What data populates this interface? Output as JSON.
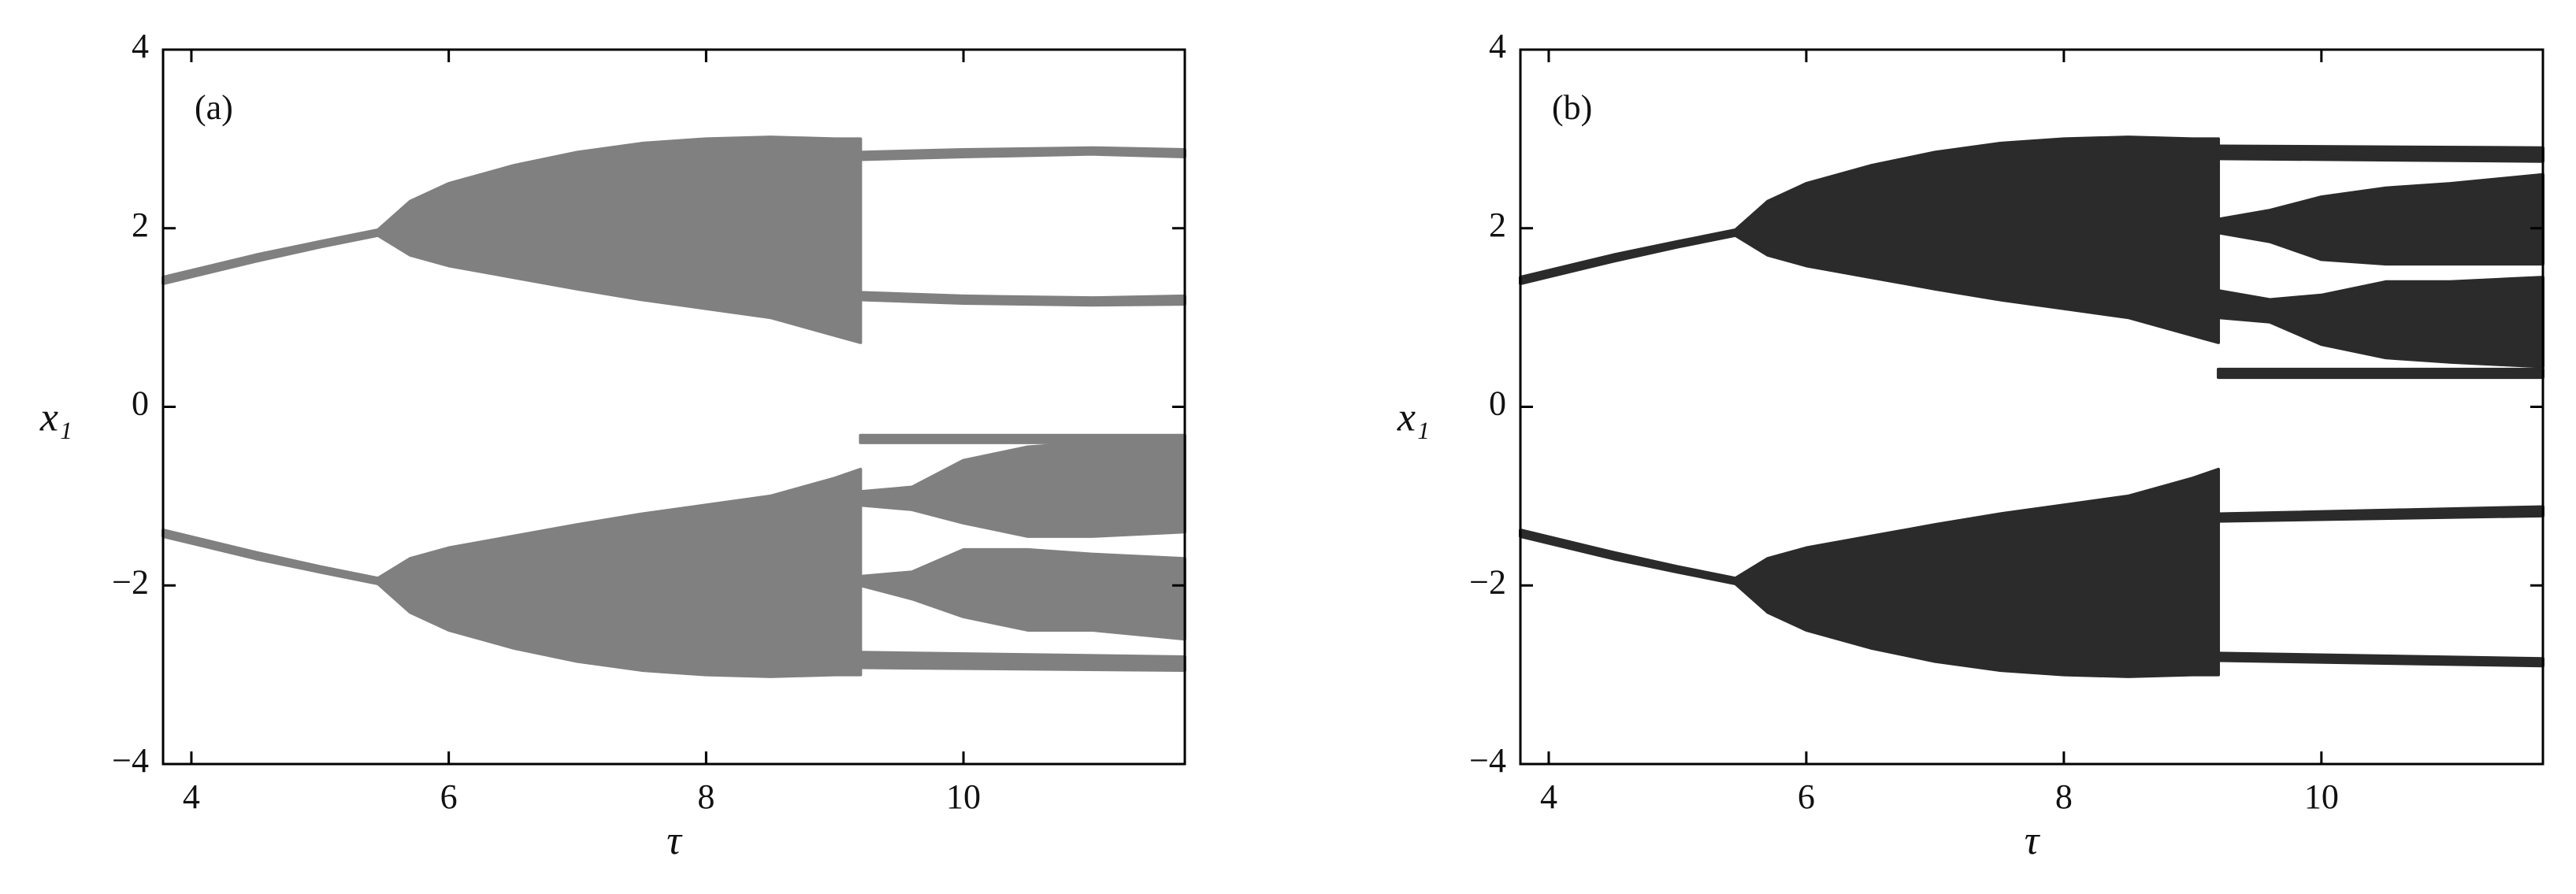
{
  "chart_data": [
    {
      "type": "bifurcation",
      "panel_label": "(a)",
      "xlabel": "τ",
      "ylabel": "x₁",
      "xlim": [
        3.78,
        11.72
      ],
      "ylim": [
        -4,
        4
      ],
      "xticks": [
        4,
        6,
        8,
        10
      ],
      "yticks": [
        {
          "value": -4,
          "label": "−4"
        },
        {
          "value": -2,
          "label": "−2"
        },
        0,
        2,
        4
      ],
      "color": "#808080",
      "bands": [
        {
          "x": [
            3.78,
            4.5,
            5,
            5.45
          ],
          "high": [
            1.45,
            1.7,
            1.85,
            1.98
          ],
          "low": [
            1.38,
            1.63,
            1.79,
            1.92
          ]
        },
        {
          "x": [
            5.45,
            5.7,
            6,
            6.5,
            7,
            7.5,
            8,
            8.5,
            9,
            9.2
          ],
          "high": [
            1.98,
            2.3,
            2.5,
            2.7,
            2.85,
            2.95,
            3.0,
            3.02,
            3.0,
            3.0
          ],
          "low": [
            1.92,
            1.7,
            1.58,
            1.45,
            1.32,
            1.2,
            1.1,
            1.0,
            0.8,
            0.72
          ]
        },
        {
          "x": [
            9.2,
            10,
            11,
            11.72
          ],
          "high": [
            2.85,
            2.88,
            2.9,
            2.88
          ],
          "low": [
            2.77,
            2.8,
            2.83,
            2.8
          ]
        },
        {
          "x": [
            9.2,
            10,
            11,
            11.72
          ],
          "high": [
            1.28,
            1.24,
            1.22,
            1.24
          ],
          "low": [
            1.2,
            1.16,
            1.14,
            1.15
          ]
        },
        {
          "x": [
            3.78,
            4.5,
            5,
            5.45
          ],
          "high": [
            -1.38,
            -1.63,
            -1.79,
            -1.92
          ],
          "low": [
            -1.45,
            -1.7,
            -1.85,
            -1.98
          ]
        },
        {
          "x": [
            5.45,
            5.7,
            6,
            6.5,
            7,
            7.5,
            8,
            8.5,
            9,
            9.2
          ],
          "high": [
            -1.92,
            -1.7,
            -1.58,
            -1.45,
            -1.32,
            -1.2,
            -1.1,
            -1.0,
            -0.8,
            -0.7
          ],
          "low": [
            -1.98,
            -2.3,
            -2.5,
            -2.7,
            -2.85,
            -2.95,
            -3.0,
            -3.02,
            -3.0,
            -3.0
          ]
        },
        {
          "x": [
            9.2,
            11.72
          ],
          "high": [
            -0.32,
            -0.32
          ],
          "low": [
            -0.4,
            -0.4
          ]
        },
        {
          "x": [
            9.2,
            9.6,
            10,
            10.5,
            11,
            11.72
          ],
          "high": [
            -0.95,
            -0.9,
            -0.6,
            -0.45,
            -0.4,
            -0.35
          ],
          "low": [
            -1.1,
            -1.15,
            -1.3,
            -1.45,
            -1.45,
            -1.4
          ]
        },
        {
          "x": [
            9.2,
            9.6,
            10,
            10.5,
            11,
            11.72
          ],
          "high": [
            -1.9,
            -1.85,
            -1.6,
            -1.6,
            -1.65,
            -1.7
          ],
          "low": [
            -2.0,
            -2.15,
            -2.35,
            -2.5,
            -2.5,
            -2.6
          ]
        },
        {
          "x": [
            9.2,
            11.72
          ],
          "high": [
            -2.75,
            -2.8
          ],
          "low": [
            -2.92,
            -2.95
          ]
        }
      ]
    },
    {
      "type": "bifurcation",
      "panel_label": "(b)",
      "xlabel": "τ",
      "ylabel": "x₁",
      "xlim": [
        3.78,
        11.72
      ],
      "ylim": [
        -4,
        4
      ],
      "xticks": [
        4,
        6,
        8,
        10
      ],
      "yticks": [
        {
          "value": -4,
          "label": "−4"
        },
        {
          "value": -2,
          "label": "−2"
        },
        0,
        2,
        4
      ],
      "color": "#2b2b2b",
      "bands": [
        {
          "x": [
            3.78,
            4.5,
            5,
            5.45
          ],
          "high": [
            1.45,
            1.7,
            1.85,
            1.98
          ],
          "low": [
            1.38,
            1.63,
            1.79,
            1.92
          ]
        },
        {
          "x": [
            5.45,
            5.7,
            6,
            6.5,
            7,
            7.5,
            8,
            8.5,
            9,
            9.2
          ],
          "high": [
            1.98,
            2.3,
            2.5,
            2.7,
            2.85,
            2.95,
            3.0,
            3.02,
            3.0,
            3.0
          ],
          "low": [
            1.92,
            1.7,
            1.58,
            1.45,
            1.32,
            1.2,
            1.1,
            1.0,
            0.8,
            0.72
          ]
        },
        {
          "x": [
            9.2,
            11.72
          ],
          "high": [
            2.92,
            2.9
          ],
          "low": [
            2.78,
            2.75
          ]
        },
        {
          "x": [
            9.2,
            9.6,
            10,
            10.5,
            11,
            11.72
          ],
          "high": [
            2.1,
            2.2,
            2.35,
            2.45,
            2.5,
            2.6
          ],
          "low": [
            1.95,
            1.85,
            1.65,
            1.6,
            1.6,
            1.6
          ]
        },
        {
          "x": [
            9.2,
            9.6,
            10,
            10.5,
            11,
            11.72
          ],
          "high": [
            1.3,
            1.2,
            1.25,
            1.4,
            1.4,
            1.45
          ],
          "low": [
            1.0,
            0.95,
            0.7,
            0.55,
            0.5,
            0.45
          ]
        },
        {
          "x": [
            9.2,
            11.72
          ],
          "high": [
            0.42,
            0.42
          ],
          "low": [
            0.33,
            0.33
          ]
        },
        {
          "x": [
            3.78,
            4.5,
            5,
            5.45
          ],
          "high": [
            -1.38,
            -1.63,
            -1.79,
            -1.92
          ],
          "low": [
            -1.45,
            -1.7,
            -1.85,
            -1.98
          ]
        },
        {
          "x": [
            5.45,
            5.7,
            6,
            6.5,
            7,
            7.5,
            8,
            8.5,
            9,
            9.2
          ],
          "high": [
            -1.92,
            -1.7,
            -1.58,
            -1.45,
            -1.32,
            -1.2,
            -1.1,
            -1.0,
            -0.8,
            -0.7
          ],
          "low": [
            -1.98,
            -2.3,
            -2.5,
            -2.7,
            -2.85,
            -2.95,
            -3.0,
            -3.02,
            -3.0,
            -3.0
          ]
        },
        {
          "x": [
            9.2,
            11.72
          ],
          "high": [
            -1.2,
            -1.12
          ],
          "low": [
            -1.28,
            -1.22
          ]
        },
        {
          "x": [
            9.2,
            11.72
          ],
          "high": [
            -2.76,
            -2.82
          ],
          "low": [
            -2.84,
            -2.9
          ]
        }
      ]
    }
  ]
}
